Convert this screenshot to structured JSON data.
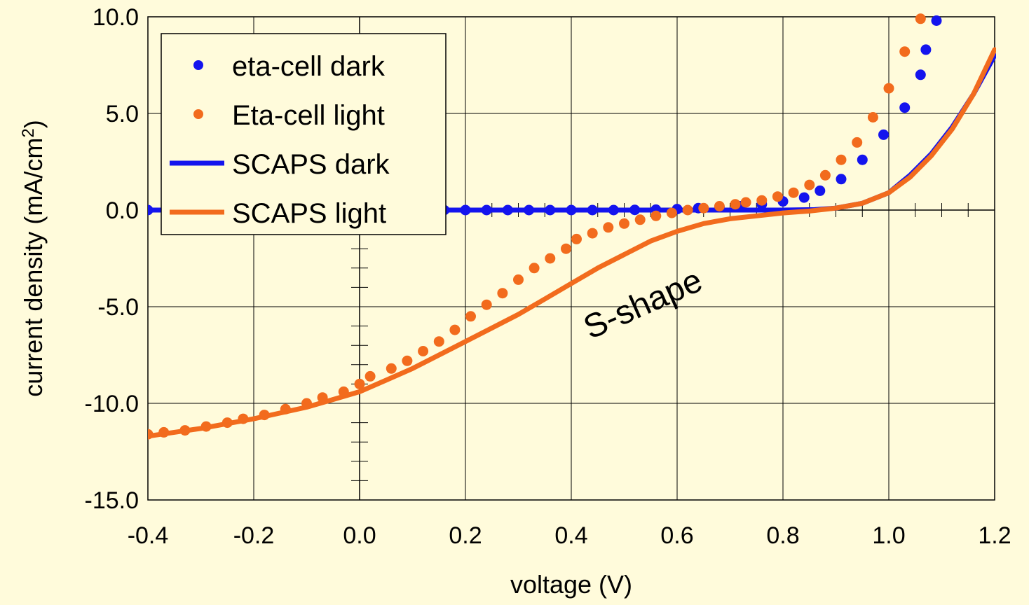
{
  "chart_data": {
    "type": "line",
    "xlabel": "voltage (V)",
    "ylabel": "current density (mA/cm2)",
    "ylabel_parts": {
      "main": "current density (mA/cm",
      "superscript": "2",
      "end": ")"
    },
    "xlim": [
      -0.4,
      1.2
    ],
    "ylim": [
      -15,
      10
    ],
    "x_ticks": [
      "-0.4",
      "-0.2",
      "0.0",
      "0.2",
      "0.4",
      "0.6",
      "0.8",
      "1.0",
      "1.2"
    ],
    "y_ticks": [
      "10.0",
      "5.0",
      "0.0",
      "-5.0",
      "-10.0",
      "-15.0"
    ],
    "grid": true,
    "legend_position": "top-left",
    "annotation": "S-shape",
    "series": [
      {
        "name": "eta-cell dark",
        "style": "markers",
        "color": "#1414EE",
        "x": [
          -0.4,
          -0.36,
          -0.32,
          -0.28,
          -0.24,
          -0.2,
          -0.16,
          -0.12,
          -0.08,
          -0.04,
          0.0,
          0.04,
          0.08,
          0.12,
          0.16,
          0.2,
          0.24,
          0.28,
          0.32,
          0.36,
          0.4,
          0.44,
          0.48,
          0.52,
          0.56,
          0.6,
          0.64,
          0.68,
          0.72,
          0.76,
          0.8,
          0.84,
          0.87,
          0.91,
          0.95,
          0.99,
          1.03,
          1.06,
          1.07,
          1.09
        ],
        "y": [
          0,
          0,
          0,
          0,
          0,
          0,
          0,
          0,
          0,
          0,
          0,
          0,
          0,
          0,
          0,
          0,
          0,
          0,
          0,
          0,
          0,
          0,
          0,
          0.01,
          0.02,
          0.05,
          0.1,
          0.15,
          0.2,
          0.3,
          0.45,
          0.65,
          1.0,
          1.6,
          2.6,
          3.9,
          5.3,
          7.0,
          8.3,
          9.8
        ]
      },
      {
        "name": "Eta-cell light",
        "style": "markers",
        "color": "#F26B1D",
        "x": [
          -0.4,
          -0.37,
          -0.33,
          -0.29,
          -0.25,
          -0.22,
          -0.18,
          -0.14,
          -0.1,
          -0.07,
          -0.03,
          0.0,
          0.02,
          0.06,
          0.09,
          0.12,
          0.15,
          0.18,
          0.21,
          0.24,
          0.27,
          0.3,
          0.33,
          0.36,
          0.39,
          0.41,
          0.44,
          0.47,
          0.5,
          0.53,
          0.56,
          0.59,
          0.62,
          0.65,
          0.68,
          0.71,
          0.73,
          0.76,
          0.79,
          0.82,
          0.85,
          0.88,
          0.91,
          0.94,
          0.97,
          1.0,
          1.03,
          1.06
        ],
        "y": [
          -11.6,
          -11.5,
          -11.4,
          -11.2,
          -11.0,
          -10.8,
          -10.6,
          -10.3,
          -10.0,
          -9.7,
          -9.4,
          -9.0,
          -8.6,
          -8.2,
          -7.8,
          -7.3,
          -6.8,
          -6.2,
          -5.5,
          -4.9,
          -4.3,
          -3.6,
          -3.0,
          -2.5,
          -2.0,
          -1.5,
          -1.2,
          -0.9,
          -0.7,
          -0.5,
          -0.3,
          -0.15,
          0.0,
          0.1,
          0.2,
          0.3,
          0.4,
          0.5,
          0.7,
          0.9,
          1.3,
          1.8,
          2.6,
          3.5,
          4.8,
          6.3,
          8.2,
          9.9
        ]
      },
      {
        "name": "SCAPS dark",
        "style": "line",
        "color": "#1414EE",
        "x": [
          -0.4,
          0.0,
          0.4,
          0.6,
          0.7,
          0.8,
          0.86,
          0.9,
          0.95,
          1.0,
          1.04,
          1.08,
          1.12,
          1.16,
          1.2
        ],
        "y": [
          0,
          0,
          0,
          0,
          0,
          0,
          0.02,
          0.1,
          0.35,
          0.9,
          1.8,
          2.9,
          4.3,
          6.0,
          8.0
        ]
      },
      {
        "name": "SCAPS light",
        "style": "line",
        "color": "#F26B1D",
        "x": [
          -0.4,
          -0.3,
          -0.2,
          -0.1,
          -0.05,
          0.0,
          0.05,
          0.1,
          0.15,
          0.2,
          0.25,
          0.3,
          0.35,
          0.4,
          0.45,
          0.5,
          0.55,
          0.6,
          0.65,
          0.7,
          0.75,
          0.8,
          0.85,
          0.9,
          0.95,
          1.0,
          1.04,
          1.08,
          1.12,
          1.16,
          1.2
        ],
        "y": [
          -11.7,
          -11.3,
          -10.8,
          -10.2,
          -9.8,
          -9.4,
          -8.8,
          -8.2,
          -7.5,
          -6.8,
          -6.1,
          -5.4,
          -4.6,
          -3.8,
          -3.0,
          -2.3,
          -1.6,
          -1.1,
          -0.7,
          -0.45,
          -0.3,
          -0.15,
          -0.05,
          0.1,
          0.35,
          0.9,
          1.7,
          2.8,
          4.2,
          6.0,
          8.3
        ]
      }
    ]
  }
}
